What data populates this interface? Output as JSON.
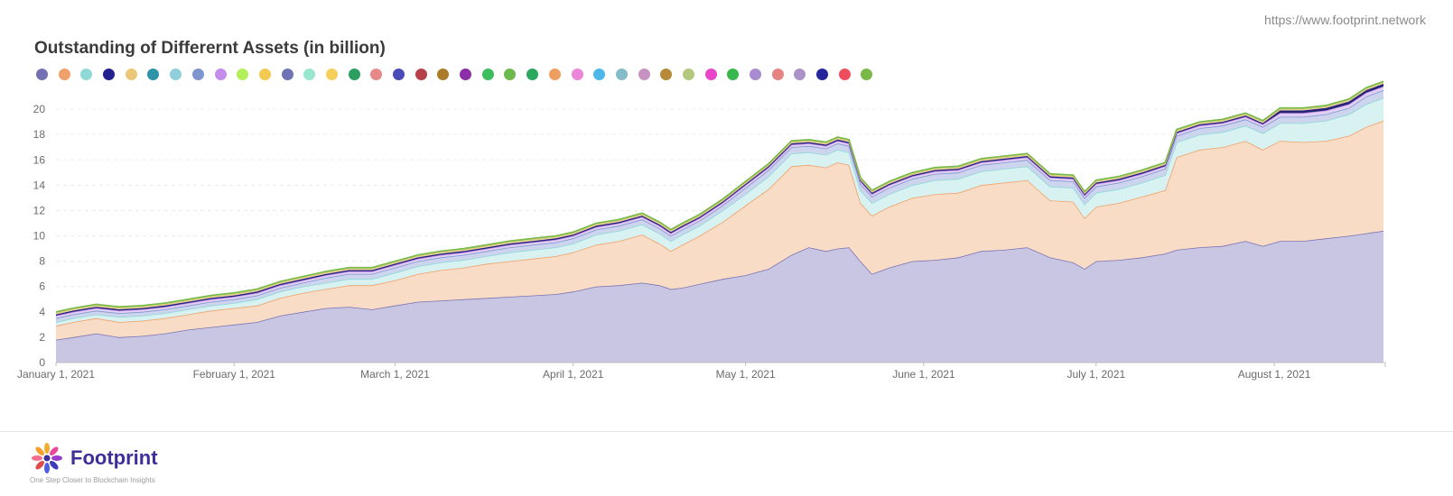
{
  "header": {
    "source_url": "https://www.footprint.network",
    "title": "Outstanding of Differernt Assets (in billion)"
  },
  "legend_colors": [
    "#7470b4",
    "#f0a16a",
    "#8fd8d8",
    "#23218f",
    "#edc779",
    "#2b94a8",
    "#8ecfdb",
    "#7f95cf",
    "#c48ced",
    "#b3ef59",
    "#f3ca51",
    "#6e73b5",
    "#97e6cd",
    "#f5cf5a",
    "#2b9e60",
    "#e88989",
    "#4a4bb6",
    "#b6414a",
    "#ac7a2b",
    "#8b2ea7",
    "#3cbe5c",
    "#6eb94b",
    "#2ba85e",
    "#ee9e5f",
    "#eb86d9",
    "#4db7ea",
    "#84bcc9",
    "#c592c2",
    "#b6893b",
    "#b4c77e",
    "#ea45c8",
    "#37b84f",
    "#a98bd1",
    "#e68484",
    "#ab92c9",
    "#25269b",
    "#ee4e5c",
    "#7ab848"
  ],
  "chart_data": {
    "type": "area",
    "stacked": true,
    "title": "Outstanding of Differernt Assets (in billion)",
    "xlabel": "",
    "ylabel": "",
    "x_start": "2021-01-01",
    "x_end": "2021-08-20",
    "x_tick_labels": [
      "January 1, 2021",
      "February 1, 2021",
      "March 1, 2021",
      "April 1, 2021",
      "May 1, 2021",
      "June 1, 2021",
      "July 1, 2021",
      "August 1, 2021"
    ],
    "y_ticks": [
      0,
      2,
      4,
      6,
      8,
      10,
      12,
      14,
      16,
      18,
      20
    ],
    "ylim": [
      0,
      21.5
    ],
    "grid": true,
    "legend_position": "top-left",
    "x": [
      "2021-01-01",
      "2021-01-04",
      "2021-01-08",
      "2021-01-12",
      "2021-01-16",
      "2021-01-20",
      "2021-01-24",
      "2021-01-28",
      "2021-02-01",
      "2021-02-05",
      "2021-02-09",
      "2021-02-13",
      "2021-02-17",
      "2021-02-21",
      "2021-02-25",
      "2021-03-01",
      "2021-03-05",
      "2021-03-09",
      "2021-03-13",
      "2021-03-17",
      "2021-03-21",
      "2021-03-25",
      "2021-03-29",
      "2021-04-01",
      "2021-04-05",
      "2021-04-09",
      "2021-04-13",
      "2021-04-16",
      "2021-04-18",
      "2021-04-20",
      "2021-04-23",
      "2021-04-27",
      "2021-05-01",
      "2021-05-05",
      "2021-05-09",
      "2021-05-12",
      "2021-05-15",
      "2021-05-17",
      "2021-05-19",
      "2021-05-21",
      "2021-05-23",
      "2021-05-26",
      "2021-05-30",
      "2021-06-03",
      "2021-06-07",
      "2021-06-11",
      "2021-06-15",
      "2021-06-19",
      "2021-06-23",
      "2021-06-27",
      "2021-06-29",
      "2021-07-01",
      "2021-07-05",
      "2021-07-09",
      "2021-07-13",
      "2021-07-15",
      "2021-07-19",
      "2021-07-23",
      "2021-07-27",
      "2021-07-30",
      "2021-08-02",
      "2021-08-06",
      "2021-08-10",
      "2021-08-14",
      "2021-08-17",
      "2021-08-20"
    ],
    "series": [
      {
        "values": [
          1.8,
          2.0,
          2.3,
          2.0,
          2.1,
          2.3,
          2.6,
          2.8,
          3.0,
          3.2,
          3.7,
          4.0,
          4.3,
          4.4,
          4.2,
          4.5,
          4.8,
          4.9,
          5.0,
          5.1,
          5.2,
          5.3,
          5.4,
          5.6,
          6.0,
          6.1,
          6.3,
          6.1,
          5.8,
          5.9,
          6.2,
          6.6,
          6.9,
          7.4,
          8.5,
          9.1,
          8.8,
          9.0,
          9.1,
          8.0,
          7.0,
          7.5,
          8.0,
          8.1,
          8.3,
          8.8,
          8.9,
          9.1,
          8.3,
          7.9,
          7.4,
          8.0,
          8.1,
          8.3,
          8.6,
          8.9,
          9.1,
          9.2,
          9.6,
          9.2,
          9.6,
          9.6,
          9.8,
          10.0,
          10.2,
          10.4
        ],
        "color": "#c9c6e3",
        "line": "#7b73b3"
      },
      {
        "values": [
          1.1,
          1.2,
          1.2,
          1.2,
          1.2,
          1.2,
          1.2,
          1.3,
          1.3,
          1.3,
          1.4,
          1.5,
          1.5,
          1.7,
          1.9,
          2.0,
          2.2,
          2.4,
          2.5,
          2.7,
          2.8,
          2.9,
          3.0,
          3.1,
          3.3,
          3.5,
          3.8,
          3.3,
          3.0,
          3.4,
          3.8,
          4.5,
          5.5,
          6.3,
          7.0,
          6.5,
          6.6,
          6.8,
          6.5,
          4.6,
          4.6,
          4.8,
          5.0,
          5.2,
          5.1,
          5.2,
          5.3,
          5.3,
          4.5,
          4.8,
          4.0,
          4.3,
          4.5,
          4.8,
          5.0,
          7.3,
          7.7,
          7.8,
          7.9,
          7.6,
          7.9,
          7.8,
          7.7,
          7.9,
          8.4,
          8.7
        ],
        "color": "#f8dcc5",
        "line": "#f0a16a"
      },
      {
        "values": [
          0.3,
          0.3,
          0.3,
          0.4,
          0.4,
          0.4,
          0.4,
          0.4,
          0.4,
          0.5,
          0.5,
          0.5,
          0.5,
          0.5,
          0.5,
          0.6,
          0.6,
          0.6,
          0.6,
          0.6,
          0.7,
          0.7,
          0.7,
          0.7,
          0.8,
          0.8,
          0.8,
          0.8,
          0.8,
          0.8,
          0.8,
          0.9,
          0.9,
          1.0,
          1.0,
          1.0,
          1.0,
          1.0,
          1.0,
          1.0,
          1.0,
          1.0,
          1.0,
          1.1,
          1.1,
          1.1,
          1.1,
          1.1,
          1.1,
          1.1,
          1.1,
          1.1,
          1.1,
          1.1,
          1.2,
          1.2,
          1.2,
          1.2,
          1.2,
          1.3,
          1.4,
          1.5,
          1.6,
          1.7,
          1.8,
          1.8
        ],
        "color": "#d7f2f1",
        "line": "#8fd8d8"
      },
      {
        "values": [
          0.3,
          0.3,
          0.3,
          0.3,
          0.3,
          0.3,
          0.3,
          0.3,
          0.3,
          0.3,
          0.3,
          0.3,
          0.4,
          0.4,
          0.4,
          0.4,
          0.4,
          0.4,
          0.4,
          0.4,
          0.4,
          0.4,
          0.4,
          0.4,
          0.4,
          0.4,
          0.4,
          0.4,
          0.4,
          0.4,
          0.4,
          0.4,
          0.5,
          0.5,
          0.5,
          0.5,
          0.5,
          0.5,
          0.5,
          0.5,
          0.5,
          0.5,
          0.5,
          0.5,
          0.5,
          0.5,
          0.5,
          0.5,
          0.5,
          0.5,
          0.5,
          0.5,
          0.5,
          0.5,
          0.5,
          0.5,
          0.5,
          0.5,
          0.5,
          0.5,
          0.5,
          0.5,
          0.5,
          0.5,
          0.6,
          0.6
        ],
        "color": "#cdd4ee",
        "line": "#7f95cf"
      },
      {
        "values": [
          0.2,
          0.2,
          0.2,
          0.2,
          0.2,
          0.2,
          0.2,
          0.2,
          0.2,
          0.2,
          0.2,
          0.2,
          0.2,
          0.2,
          0.2,
          0.2,
          0.2,
          0.2,
          0.2,
          0.2,
          0.2,
          0.2,
          0.2,
          0.2,
          0.2,
          0.2,
          0.2,
          0.2,
          0.2,
          0.2,
          0.2,
          0.2,
          0.2,
          0.2,
          0.2,
          0.2,
          0.2,
          0.2,
          0.2,
          0.2,
          0.2,
          0.2,
          0.2,
          0.2,
          0.2,
          0.2,
          0.2,
          0.2,
          0.2,
          0.2,
          0.2,
          0.2,
          0.2,
          0.2,
          0.2,
          0.2,
          0.2,
          0.2,
          0.2,
          0.2,
          0.3,
          0.3,
          0.3,
          0.3,
          0.3,
          0.3
        ],
        "color": "#e0d0f4",
        "line": "#c48ced"
      },
      {
        "values": [
          0.1,
          0.1,
          0.1,
          0.1,
          0.1,
          0.1,
          0.1,
          0.1,
          0.1,
          0.1,
          0.1,
          0.1,
          0.1,
          0.1,
          0.1,
          0.1,
          0.1,
          0.1,
          0.1,
          0.1,
          0.1,
          0.1,
          0.1,
          0.1,
          0.1,
          0.1,
          0.1,
          0.1,
          0.1,
          0.1,
          0.1,
          0.1,
          0.1,
          0.1,
          0.1,
          0.1,
          0.1,
          0.1,
          0.1,
          0.1,
          0.1,
          0.1,
          0.1,
          0.1,
          0.1,
          0.1,
          0.1,
          0.1,
          0.1,
          0.1,
          0.1,
          0.1,
          0.1,
          0.1,
          0.1,
          0.1,
          0.1,
          0.1,
          0.1,
          0.1,
          0.2,
          0.2,
          0.2,
          0.2,
          0.2,
          0.2
        ],
        "color": "#25266f",
        "line": "#23218f"
      },
      {
        "values": [
          0.1,
          0.1,
          0.1,
          0.1,
          0.1,
          0.1,
          0.1,
          0.1,
          0.1,
          0.1,
          0.1,
          0.1,
          0.1,
          0.1,
          0.1,
          0.1,
          0.1,
          0.1,
          0.1,
          0.1,
          0.1,
          0.1,
          0.1,
          0.1,
          0.1,
          0.1,
          0.1,
          0.1,
          0.1,
          0.1,
          0.1,
          0.1,
          0.1,
          0.1,
          0.1,
          0.1,
          0.1,
          0.1,
          0.1,
          0.1,
          0.1,
          0.1,
          0.1,
          0.1,
          0.1,
          0.1,
          0.1,
          0.1,
          0.1,
          0.1,
          0.1,
          0.1,
          0.1,
          0.1,
          0.1,
          0.1,
          0.1,
          0.1,
          0.1,
          0.1,
          0.1,
          0.1,
          0.1,
          0.1,
          0.1,
          0.1
        ],
        "color": "#f1dca9",
        "line": "#edc779"
      },
      {
        "values": [
          0.1,
          0.1,
          0.1,
          0.1,
          0.1,
          0.1,
          0.1,
          0.1,
          0.1,
          0.1,
          0.1,
          0.1,
          0.1,
          0.1,
          0.1,
          0.1,
          0.1,
          0.1,
          0.1,
          0.1,
          0.1,
          0.1,
          0.1,
          0.1,
          0.1,
          0.1,
          0.1,
          0.1,
          0.1,
          0.1,
          0.1,
          0.1,
          0.1,
          0.1,
          0.1,
          0.1,
          0.1,
          0.1,
          0.1,
          0.1,
          0.1,
          0.1,
          0.1,
          0.1,
          0.1,
          0.1,
          0.1,
          0.1,
          0.1,
          0.1,
          0.1,
          0.1,
          0.1,
          0.1,
          0.1,
          0.1,
          0.1,
          0.1,
          0.1,
          0.1,
          0.1,
          0.1,
          0.1,
          0.1,
          0.1,
          0.1
        ],
        "color": "#b9d98d",
        "line": "#7ab848"
      }
    ]
  },
  "footer": {
    "brand_name": "Footprint",
    "tagline": "One Step Closer to Blockchain Insights"
  }
}
